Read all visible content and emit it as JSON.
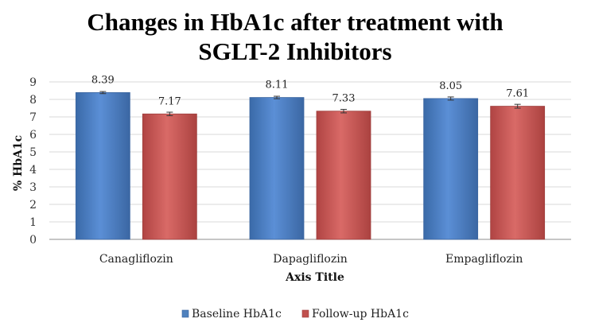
{
  "chart_data": {
    "type": "bar",
    "title_lines": [
      "Changes in HbA1c after treatment with",
      "SGLT-2 Inhibitors"
    ],
    "xlabel": "Axis Title",
    "ylabel": "% HbA1c",
    "ylim": [
      0,
      9
    ],
    "yticks": [
      0,
      1,
      2,
      3,
      4,
      5,
      6,
      7,
      8,
      9
    ],
    "categories": [
      "Canagliflozin",
      "Dapagliflozin",
      "Empagliflozin"
    ],
    "series": [
      {
        "name": "Baseline HbA1c",
        "values": [
          8.39,
          8.11,
          8.05
        ],
        "labels": [
          "8.39",
          "8.11",
          "8.05"
        ],
        "errors": [
          0.06,
          0.07,
          0.09
        ],
        "color": "#4f81bd"
      },
      {
        "name": "Follow-up HbA1c",
        "values": [
          7.17,
          7.33,
          7.61
        ],
        "labels": [
          "7.17",
          "7.33",
          "7.61"
        ],
        "errors": [
          0.1,
          0.1,
          0.11
        ],
        "color": "#c0504d"
      }
    ],
    "grid": true,
    "legend_position": "bottom"
  }
}
